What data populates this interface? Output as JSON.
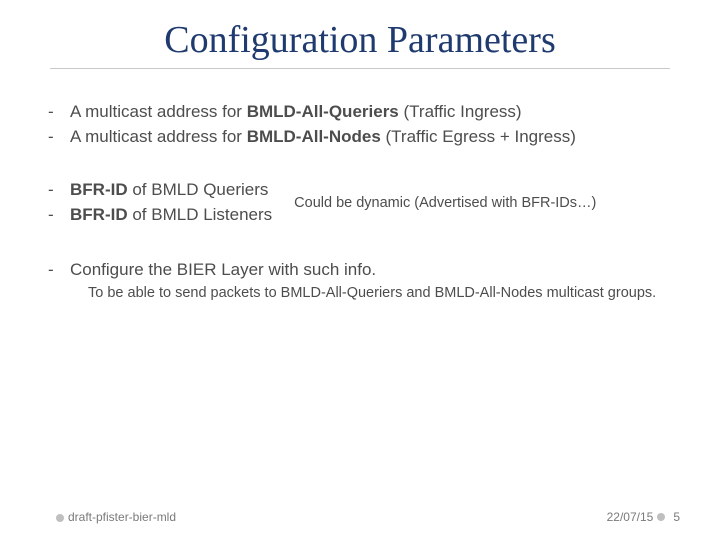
{
  "title": "Configuration Parameters",
  "title_color": "#1f3a6e",
  "title_fontsize": 38,
  "body_color": "#4d4d4d",
  "body_fontsize": 17,
  "sub_fontsize": 14.5,
  "footer_fontsize": 12,
  "footer_color": "#7a7a7a",
  "bullet_color": "#bfbfbf",
  "background_color": "#ffffff",
  "group1": {
    "line1_pre": "A multicast address for ",
    "line1_bold": "BMLD-All-Queriers",
    "line1_post": " (Traffic  Ingress)",
    "line2_pre": "A multicast address for ",
    "line2_bold": "BMLD-All-Nodes",
    "line2_post": " (Traffic Egress + Ingress)"
  },
  "group2": {
    "line1_bold": "BFR-ID",
    "line1_rest": " of BMLD Queriers",
    "line2_bold": "BFR-ID",
    "line2_rest": " of BMLD Listeners",
    "note": "Could be dynamic (Advertised with BFR-IDs…)"
  },
  "group3": {
    "line1": "Configure the BIER Layer with such info.",
    "sub": "To be able to send packets to BMLD-All-Queriers and BMLD-All-Nodes multicast groups."
  },
  "footer": {
    "left": "draft-pfister-bier-mld",
    "date": "22/07/15",
    "page": "5"
  }
}
